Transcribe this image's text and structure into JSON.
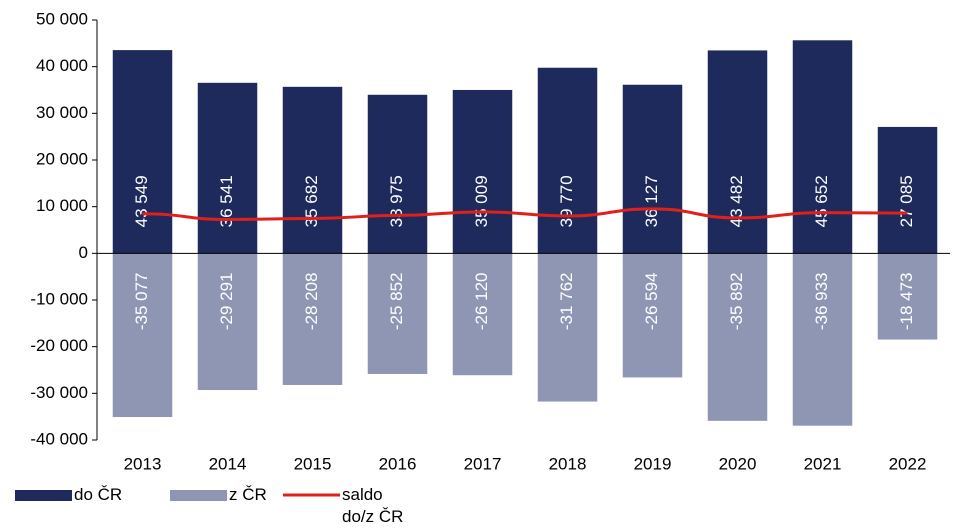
{
  "chart_data": {
    "type": "bar",
    "categories": [
      "2013",
      "2014",
      "2015",
      "2016",
      "2017",
      "2018",
      "2019",
      "2020",
      "2021",
      "2022"
    ],
    "series": [
      {
        "name": "do ČR",
        "color": "#1f2a5c",
        "values": [
          43549,
          36541,
          35682,
          33975,
          35009,
          39770,
          36127,
          43482,
          45652,
          27085
        ],
        "value_labels": [
          "43 549",
          "36 541",
          "35 682",
          "33 975",
          "35 009",
          "39 770",
          "36 127",
          "43 482",
          "45 652",
          "27 085"
        ]
      },
      {
        "name": "z ČR",
        "color": "#8e96b3",
        "values": [
          -35077,
          -29291,
          -28208,
          -25852,
          -26120,
          -31762,
          -26594,
          -35892,
          -36933,
          -18473
        ],
        "value_labels": [
          "-35 077",
          "-29 291",
          "-28 208",
          "-25 852",
          "-26 120",
          "-31 762",
          "-26 594",
          "-35 892",
          "-36 933",
          "-18 473"
        ]
      },
      {
        "name": "saldo do/z ČR",
        "type": "line",
        "color": "#e0201b",
        "values": [
          8472,
          7250,
          7474,
          8123,
          8889,
          8008,
          9533,
          7590,
          8719,
          8612
        ]
      }
    ],
    "ylim": [
      -40000,
      50000
    ],
    "yticks": [
      {
        "value": -40000,
        "label": "-40 000"
      },
      {
        "value": -30000,
        "label": "-30 000"
      },
      {
        "value": -20000,
        "label": "-20 000"
      },
      {
        "value": -10000,
        "label": "-10 000"
      },
      0,
      {
        "value": 10000,
        "label": "10 000"
      },
      {
        "value": 20000,
        "label": "20 000"
      },
      {
        "value": 30000,
        "label": "30 000"
      },
      {
        "value": 40000,
        "label": "40 000"
      },
      {
        "value": 50000,
        "label": "50 000"
      }
    ]
  }
}
